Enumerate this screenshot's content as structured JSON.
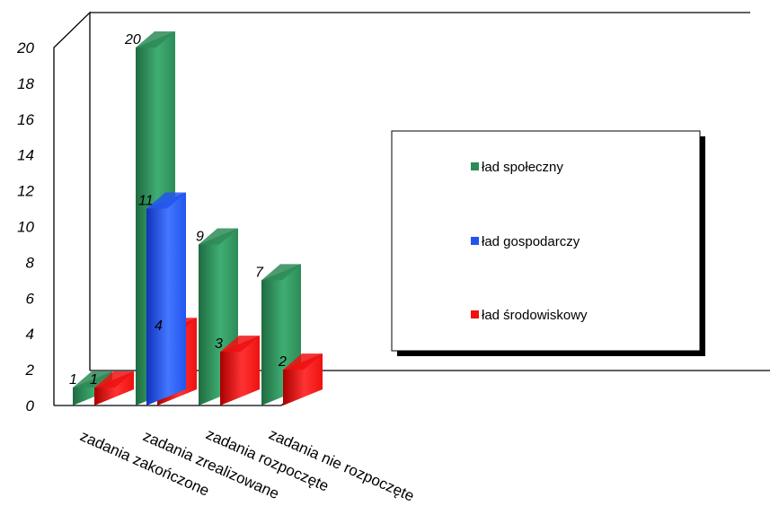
{
  "chart_data": {
    "type": "bar",
    "categories": [
      "zadania zakończone",
      "zadania zrealizowane",
      "zadania rozpoczęte",
      "zadania nie rozpoczęte"
    ],
    "series": [
      {
        "name": "ład społeczny",
        "color": "#2e8b57",
        "values": [
          1,
          20,
          9,
          7
        ],
        "labels": [
          "1",
          "20",
          "9",
          "7"
        ]
      },
      {
        "name": "ład gospodarczy",
        "color": "#2255ee",
        "values": [
          null,
          11,
          null,
          null
        ],
        "labels": [
          "",
          "11",
          "",
          ""
        ]
      },
      {
        "name": "ład środowiskowy",
        "color": "#ee1111",
        "values": [
          1,
          4,
          3,
          2
        ],
        "labels": [
          "1",
          "4",
          "3",
          "2"
        ]
      }
    ],
    "yticks": [
      "0",
      "2",
      "4",
      "6",
      "8",
      "10",
      "12",
      "14",
      "16",
      "18",
      "20"
    ],
    "ylim": [
      0,
      20
    ],
    "legend_position": "right",
    "title": "",
    "xlabel": "",
    "ylabel": ""
  }
}
